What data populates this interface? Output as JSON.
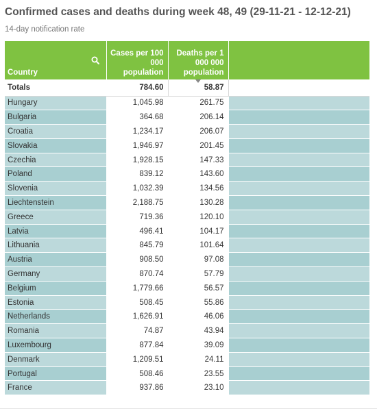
{
  "title": "Confirmed cases and deaths during week 48, 49 (29-11-21 - 12-12-21)",
  "subtitle": "14-day notification rate",
  "colors": {
    "header": "#7fc241",
    "row_band_a": "#a8cfd1",
    "row_band_b": "#bcd9db",
    "title": "#555555"
  },
  "chart_data": {
    "type": "table",
    "columns": [
      {
        "key": "country",
        "label": "Country",
        "icon": "search-icon"
      },
      {
        "key": "cases",
        "label": "Cases per 100 000 population"
      },
      {
        "key": "deaths",
        "label": "Deaths per 1 000 000 population",
        "sorted": "descending"
      }
    ],
    "totals": {
      "label": "Totals",
      "cases": "784.60",
      "deaths": "58.87"
    },
    "rows": [
      {
        "country": "Hungary",
        "cases": "1,045.98",
        "deaths": "261.75"
      },
      {
        "country": "Bulgaria",
        "cases": "364.68",
        "deaths": "206.14"
      },
      {
        "country": "Croatia",
        "cases": "1,234.17",
        "deaths": "206.07"
      },
      {
        "country": "Slovakia",
        "cases": "1,946.97",
        "deaths": "201.45"
      },
      {
        "country": "Czechia",
        "cases": "1,928.15",
        "deaths": "147.33"
      },
      {
        "country": "Poland",
        "cases": "839.12",
        "deaths": "143.60"
      },
      {
        "country": "Slovenia",
        "cases": "1,032.39",
        "deaths": "134.56"
      },
      {
        "country": "Liechtenstein",
        "cases": "2,188.75",
        "deaths": "130.28"
      },
      {
        "country": "Greece",
        "cases": "719.36",
        "deaths": "120.10"
      },
      {
        "country": "Latvia",
        "cases": "496.41",
        "deaths": "104.17"
      },
      {
        "country": "Lithuania",
        "cases": "845.79",
        "deaths": "101.64"
      },
      {
        "country": "Austria",
        "cases": "908.50",
        "deaths": "97.08"
      },
      {
        "country": "Germany",
        "cases": "870.74",
        "deaths": "57.79"
      },
      {
        "country": "Belgium",
        "cases": "1,779.66",
        "deaths": "56.57"
      },
      {
        "country": "Estonia",
        "cases": "508.45",
        "deaths": "55.86"
      },
      {
        "country": "Netherlands",
        "cases": "1,626.91",
        "deaths": "46.06"
      },
      {
        "country": "Romania",
        "cases": "74.87",
        "deaths": "43.94"
      },
      {
        "country": "Luxembourg",
        "cases": "877.84",
        "deaths": "39.09"
      },
      {
        "country": "Denmark",
        "cases": "1,209.51",
        "deaths": "24.11"
      },
      {
        "country": "Portugal",
        "cases": "508.46",
        "deaths": "23.55"
      },
      {
        "country": "France",
        "cases": "937.86",
        "deaths": "23.10"
      }
    ]
  }
}
